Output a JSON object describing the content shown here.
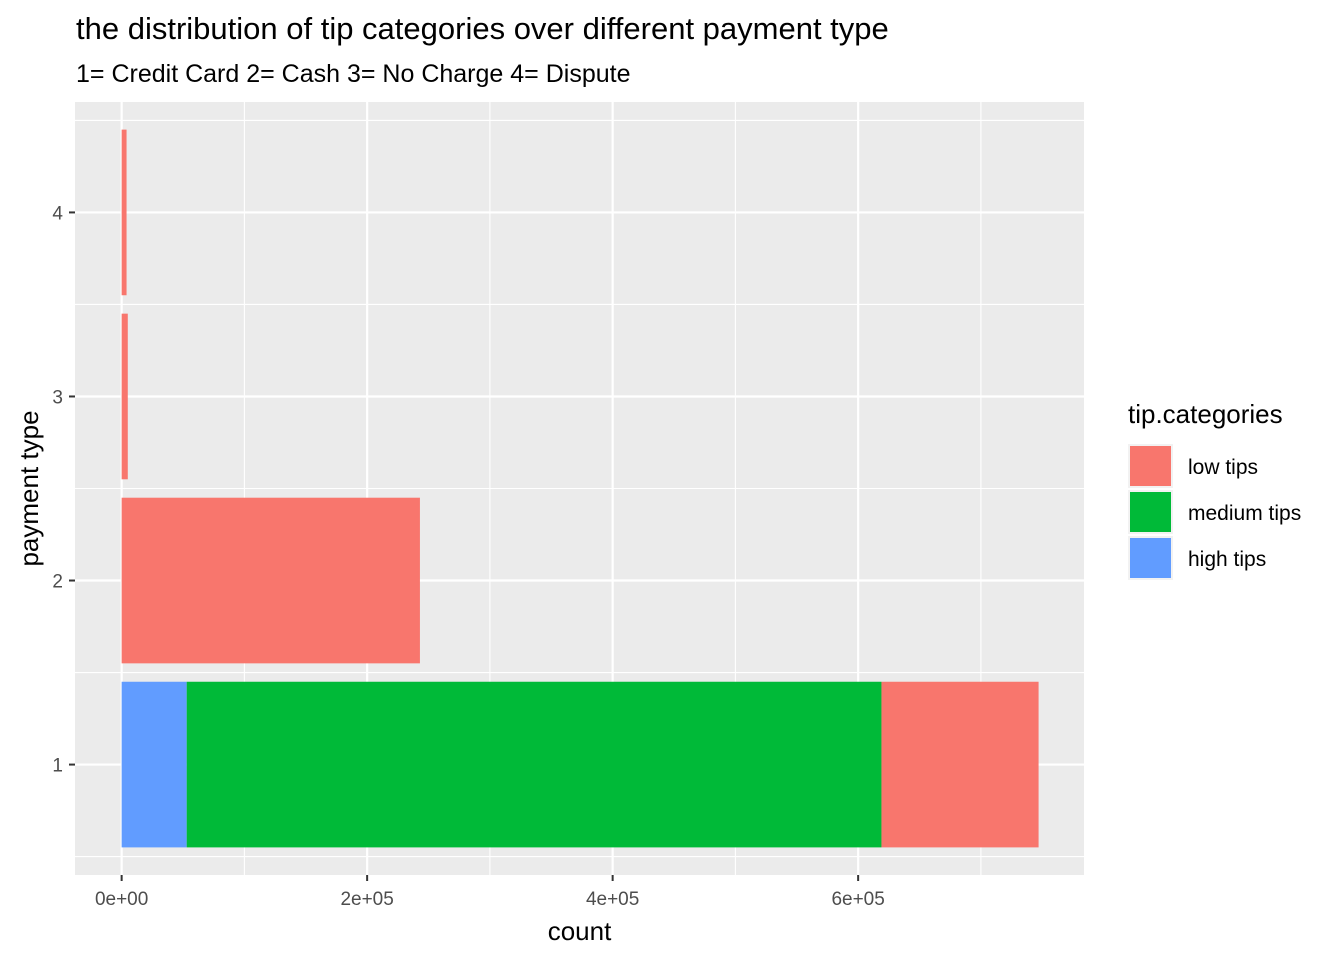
{
  "chart_data": {
    "type": "bar",
    "orientation": "horizontal",
    "stacked": true,
    "title": "the distribution of tip categories over different payment type",
    "subtitle": "1= Credit Card 2= Cash 3= No Charge 4= Dispute",
    "xlabel": "count",
    "ylabel": "payment type",
    "categories": [
      "1",
      "2",
      "3",
      "4"
    ],
    "x_ticks": [
      0,
      200000,
      400000,
      600000
    ],
    "x_tick_labels": [
      "0e+00",
      "2e+05",
      "4e+05",
      "6e+05"
    ],
    "xlim": [
      -38000,
      784000
    ],
    "grid": true,
    "legend_title": "tip.categories",
    "legend_position": "right",
    "stack_order": [
      "high tips",
      "medium tips",
      "low tips"
    ],
    "series": [
      {
        "name": "low tips",
        "color": "#F8766D",
        "values": [
          128000,
          243000,
          5000,
          4000
        ]
      },
      {
        "name": "medium tips",
        "color": "#00BA38",
        "values": [
          566000,
          0,
          0,
          0
        ]
      },
      {
        "name": "high tips",
        "color": "#619CFF",
        "values": [
          53000,
          0,
          0,
          0
        ]
      }
    ]
  }
}
